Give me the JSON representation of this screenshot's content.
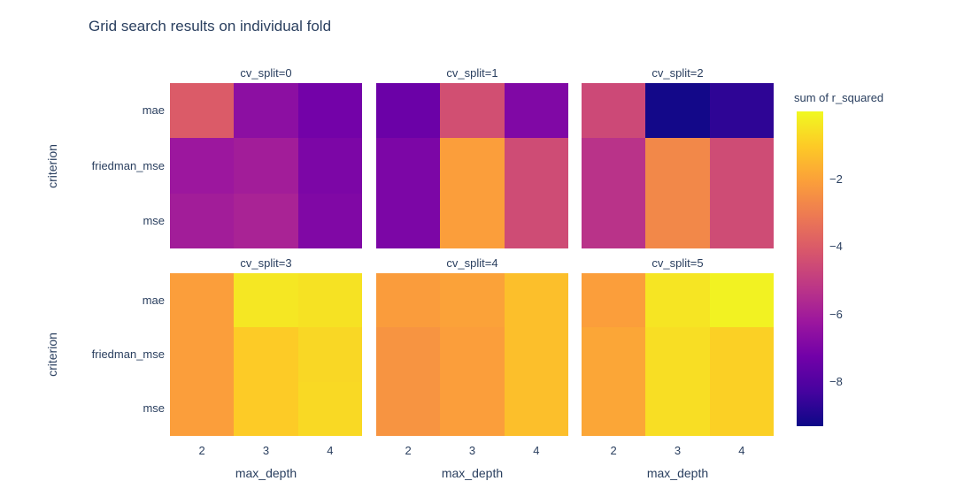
{
  "title": "Grid search results on individual fold",
  "colors": {
    "text": "#2a3f5f",
    "background": "#ffffff"
  },
  "chart_data": {
    "type": "heatmap",
    "title": "Grid search results on individual fold",
    "facet_variable": "cv_split",
    "xlabel": "max_depth",
    "ylabel": "criterion",
    "columns": [
      "2",
      "3",
      "4"
    ],
    "rows": [
      "mae",
      "friedman_mse",
      "mse"
    ],
    "legend_position": "right",
    "grid": false,
    "colorbar": {
      "title": "sum of r_squared",
      "ticks": [
        -2,
        -4,
        -6,
        -8
      ],
      "tick_labels": [
        "−2",
        "−4",
        "−6",
        "−8"
      ],
      "zmin": -9.3,
      "zmax": 0,
      "colorscale_name": "plasma",
      "colorscale_stops": [
        [
          0.0,
          "#0d0887"
        ],
        [
          0.111,
          "#46039f"
        ],
        [
          0.222,
          "#7201a8"
        ],
        [
          0.333,
          "#9c179e"
        ],
        [
          0.444,
          "#bd3786"
        ],
        [
          0.556,
          "#d8576b"
        ],
        [
          0.667,
          "#ed7953"
        ],
        [
          0.778,
          "#fb9f3a"
        ],
        [
          0.889,
          "#fdca26"
        ],
        [
          1.0,
          "#f0f921"
        ]
      ]
    },
    "facets": [
      {
        "label": "cv_split=0",
        "values": [
          [
            -4.0,
            -6.6,
            -7.2
          ],
          [
            -6.2,
            -6.0,
            -7.0
          ],
          [
            -6.0,
            -5.8,
            -6.9
          ]
        ]
      },
      {
        "label": "cv_split=1",
        "values": [
          [
            -7.4,
            -4.4,
            -6.9
          ],
          [
            -7.0,
            -2.1,
            -4.5
          ],
          [
            -7.0,
            -2.1,
            -4.5
          ]
        ]
      },
      {
        "label": "cv_split=2",
        "values": [
          [
            -4.6,
            -9.2,
            -8.7
          ],
          [
            -5.3,
            -2.7,
            -4.5
          ],
          [
            -5.3,
            -2.7,
            -4.5
          ]
        ]
      },
      {
        "label": "cv_split=3",
        "values": [
          [
            -2.1,
            -0.4,
            -0.5
          ],
          [
            -2.1,
            -1.0,
            -0.75
          ],
          [
            -2.1,
            -1.0,
            -0.7
          ]
        ]
      },
      {
        "label": "cv_split=4",
        "values": [
          [
            -2.15,
            -2.0,
            -1.3
          ],
          [
            -2.35,
            -2.1,
            -1.3
          ],
          [
            -2.35,
            -2.1,
            -1.3
          ]
        ]
      },
      {
        "label": "cv_split=5",
        "values": [
          [
            -2.1,
            -0.45,
            -0.15
          ],
          [
            -1.9,
            -0.6,
            -0.9
          ],
          [
            -1.9,
            -0.6,
            -0.9
          ]
        ]
      }
    ]
  }
}
